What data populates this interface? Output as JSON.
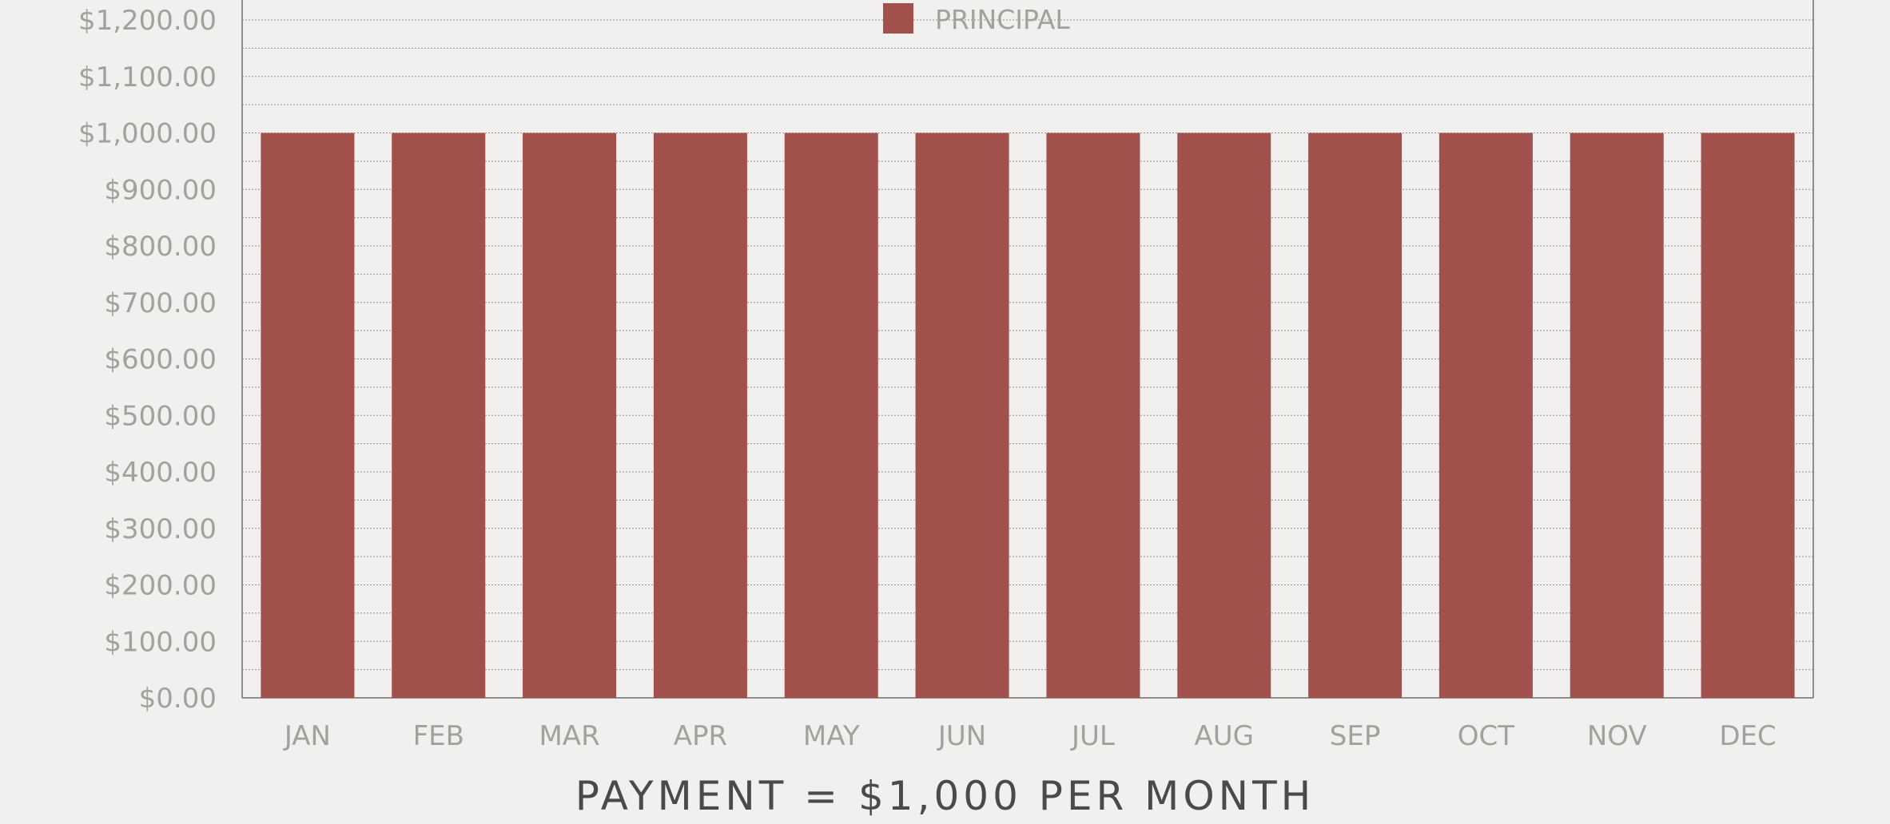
{
  "chart_data": {
    "type": "bar",
    "title": "PAYMENT = $1,000 PER MONTH",
    "categories": [
      "JAN",
      "FEB",
      "MAR",
      "APR",
      "MAY",
      "JUN",
      "JUL",
      "AUG",
      "SEP",
      "OCT",
      "NOV",
      "DEC"
    ],
    "series": [
      {
        "name": "PRINCIPAL",
        "values": [
          1000,
          1000,
          1000,
          1000,
          1000,
          1000,
          1000,
          1000,
          1000,
          1000,
          1000,
          1000
        ]
      }
    ],
    "y_ticks": [
      "$0.00",
      "$100.00",
      "$200.00",
      "$300.00",
      "$400.00",
      "$500.00",
      "$600.00",
      "$700.00",
      "$800.00",
      "$900.00",
      "$1,000.00",
      "$1,100.00",
      "$1,200.00"
    ],
    "ylim": [
      0,
      1200
    ],
    "grid": true,
    "legend_position": "top-center",
    "colors": {
      "bar": "#a2504c",
      "axis": "#6f6d69",
      "grid": "#8a8884",
      "text": "#a3a19d",
      "title": "#4a4a4a",
      "background": "#f1f0ee"
    }
  }
}
